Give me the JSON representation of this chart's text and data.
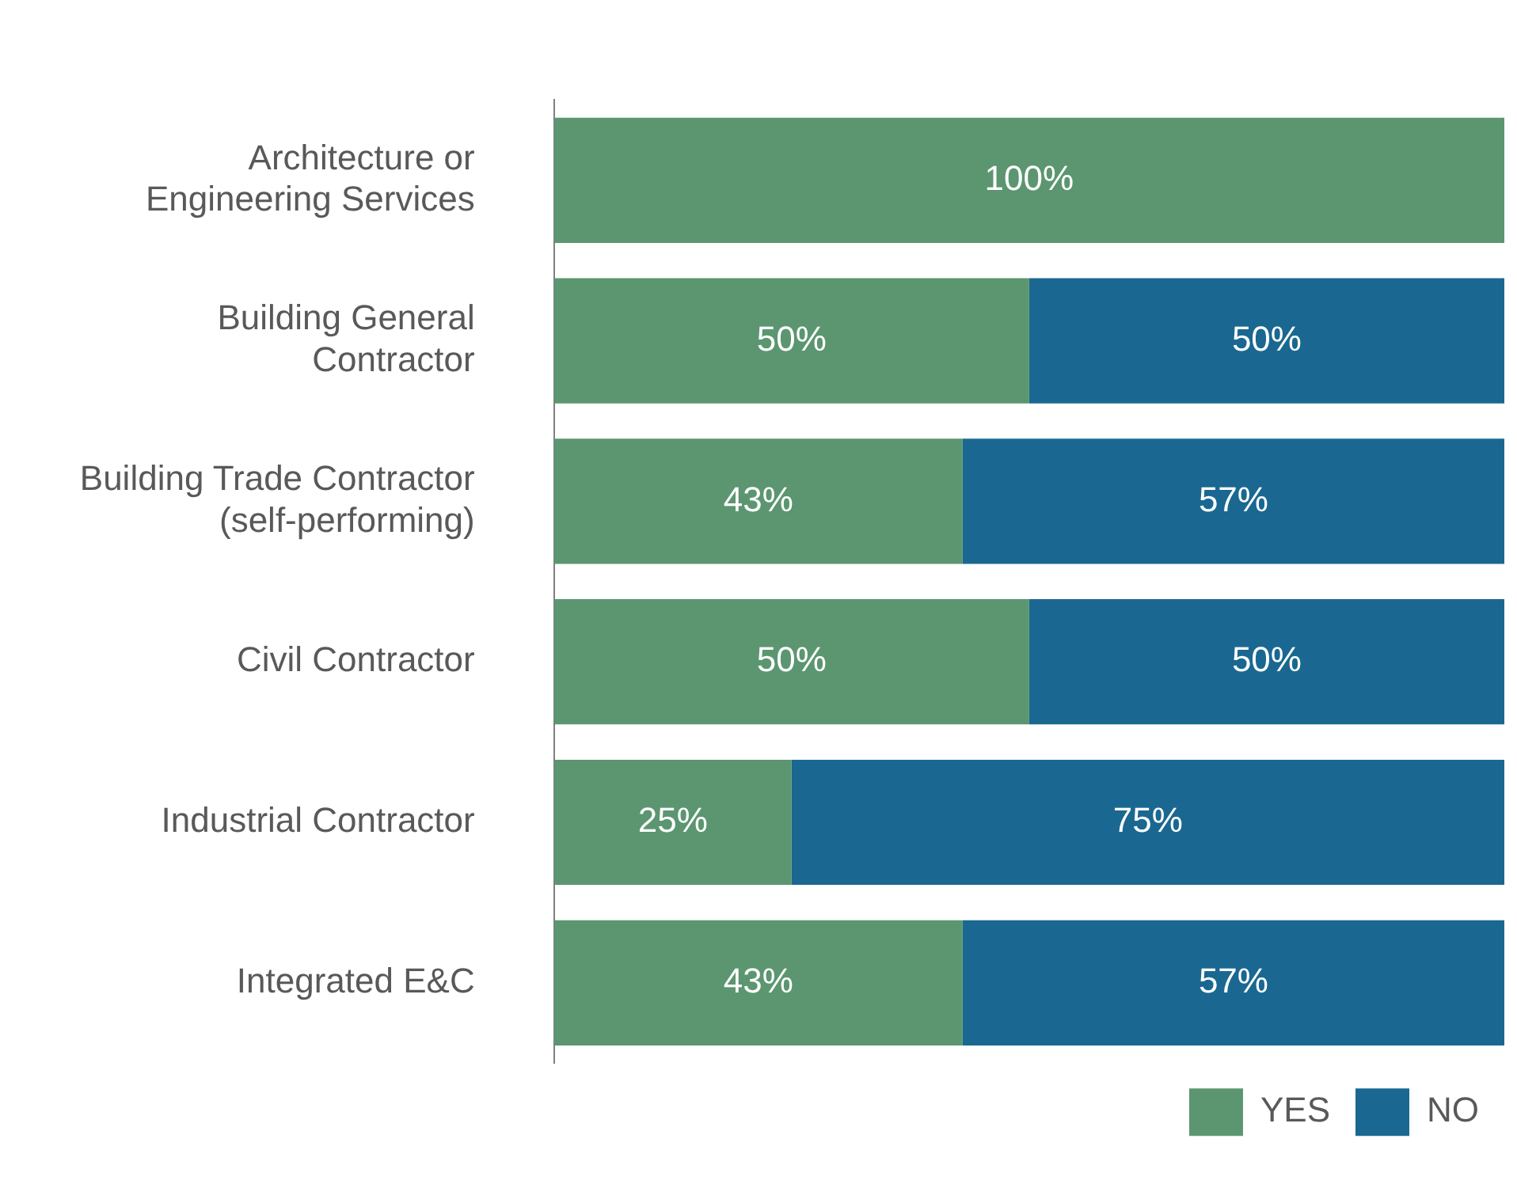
{
  "chart_data": {
    "type": "bar",
    "orientation": "horizontal",
    "stacked": true,
    "legend": "bottom right",
    "grid": false,
    "categories": [
      "Architecture or Engineering Services",
      "Building General Contractor",
      "Building Trade Contractor (self-performing)",
      "Civil Contractor",
      "Industrial Contractor",
      "Integrated E&C"
    ],
    "series": [
      {
        "name": "YES",
        "color": "#5b9670",
        "values": [
          100,
          50,
          43,
          50,
          25,
          43
        ],
        "value_labels": [
          "100%",
          "50%",
          "43%",
          "50%",
          "25%",
          "43%"
        ]
      },
      {
        "name": "NO",
        "color": "#1a6891",
        "values": [
          null,
          50,
          57,
          50,
          75,
          57
        ],
        "value_labels": [
          null,
          "50%",
          "57%",
          "50%",
          "75%",
          "57%"
        ]
      }
    ]
  }
}
